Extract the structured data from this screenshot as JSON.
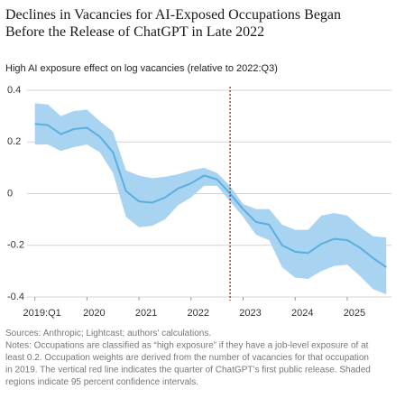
{
  "chart_data": {
    "type": "line",
    "title": [
      "Declines in Vacancies for AI-Exposed Occupations Began",
      "Before the Release of ChatGPT in Late 2022"
    ],
    "y_label": "High AI exposure effect on log vacancies (relative to 2022:Q3)",
    "x": [
      2019,
      2019.25,
      2019.5,
      2019.75,
      2020,
      2020.25,
      2020.5,
      2020.75,
      2021,
      2021.25,
      2021.5,
      2021.75,
      2022,
      2022.25,
      2022.5,
      2022.75,
      2023,
      2023.25,
      2023.5,
      2023.75,
      2024,
      2024.25,
      2024.5,
      2024.75,
      2025,
      2025.25,
      2025.5,
      2025.75
    ],
    "series": [
      {
        "color": "#5aaee0",
        "band_color": "#a9d4f1",
        "values": [
          0.27,
          0.265,
          0.23,
          0.25,
          0.255,
          0.22,
          0.16,
          0.01,
          -0.03,
          -0.035,
          -0.015,
          0.02,
          0.04,
          0.07,
          0.055,
          0,
          -0.06,
          -0.11,
          -0.12,
          -0.2,
          -0.225,
          -0.23,
          -0.195,
          -0.175,
          -0.18,
          -0.21,
          -0.25,
          -0.285
        ],
        "upper": [
          0.35,
          0.345,
          0.3,
          0.32,
          0.325,
          0.28,
          0.24,
          0.09,
          0.07,
          0.06,
          0.065,
          0.075,
          0.09,
          0.1,
          0.08,
          0.03,
          -0.04,
          -0.06,
          -0.06,
          -0.12,
          -0.14,
          -0.14,
          -0.085,
          -0.075,
          -0.085,
          -0.13,
          -0.165,
          -0.17
        ],
        "lower": [
          0.19,
          0.19,
          0.165,
          0.18,
          0.19,
          0.16,
          0.08,
          -0.09,
          -0.13,
          -0.125,
          -0.1,
          -0.045,
          -0.015,
          0.03,
          0.03,
          -0.03,
          -0.09,
          -0.16,
          -0.18,
          -0.285,
          -0.325,
          -0.33,
          -0.3,
          -0.28,
          -0.275,
          -0.32,
          -0.37,
          -0.39
        ]
      }
    ],
    "xlim": [
      2018.85,
      2025.85
    ],
    "xticks": [
      {
        "value": 2019,
        "label": "2019:Q1"
      },
      2020,
      2021,
      2022,
      2023,
      2024,
      2025
    ],
    "ylim": [
      -0.4,
      0.4
    ],
    "yticks": [
      0.4,
      0.2,
      0,
      -0.2,
      -0.4
    ],
    "grid": true,
    "vline": {
      "x": 2022.75,
      "color": "#a0472a"
    },
    "notes": [
      "Sources: Anthropic; Lightcast; authors' calculations.",
      "Notes: Occupations are classified as “high exposure” if they have a job-level exposure of at",
      "least 0.2. Occupation weights are derived from the number of vacancies for that occupation",
      "in 2019. The vertical red line indicates the quarter of ChatGPT’s first public release. Shaded",
      "regions indicate 95 percent confidence intervals."
    ]
  }
}
